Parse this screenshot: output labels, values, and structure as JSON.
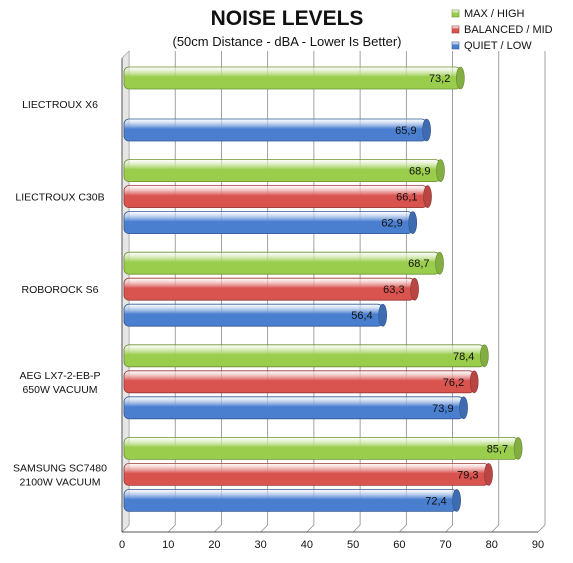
{
  "chart_data": {
    "type": "bar",
    "orientation": "horizontal",
    "title": "NOISE LEVELS",
    "subtitle": "(50cm Distance - dBA - Lower Is Better)",
    "xlabel": "",
    "ylabel": "",
    "xlim": [
      0,
      90
    ],
    "ticks": [
      "0",
      "10",
      "20",
      "30",
      "40",
      "50",
      "60",
      "70",
      "80",
      "90"
    ],
    "grid": true,
    "legend_position": "top-right",
    "categories": [
      [
        "LIECTROUX X6"
      ],
      [
        "LIECTROUX C30B"
      ],
      [
        "ROBOROCK S6"
      ],
      [
        "AEG LX7-2-EB-P",
        "650W VACUUM"
      ],
      [
        "SAMSUNG SC7480",
        "2100W VACUUM"
      ]
    ],
    "series": [
      {
        "name": "MAX / HIGH",
        "color": "#9acd4c",
        "values": [
          73.2,
          68.9,
          68.7,
          78.4,
          85.7
        ],
        "labels": [
          "73,2",
          "68,9",
          "68,7",
          "78,4",
          "85,7"
        ]
      },
      {
        "name": "BALANCED / MID",
        "color": "#d9534f",
        "values": [
          null,
          66.1,
          63.3,
          76.2,
          79.3
        ],
        "labels": [
          "",
          "66,1",
          "63,3",
          "76,2",
          "79,3"
        ]
      },
      {
        "name": "QUIET / LOW",
        "color": "#4a7fd0",
        "values": [
          65.9,
          62.9,
          56.4,
          73.9,
          72.4
        ],
        "labels": [
          "65,9",
          "62,9",
          "56,4",
          "73,9",
          "72,4"
        ]
      }
    ]
  }
}
